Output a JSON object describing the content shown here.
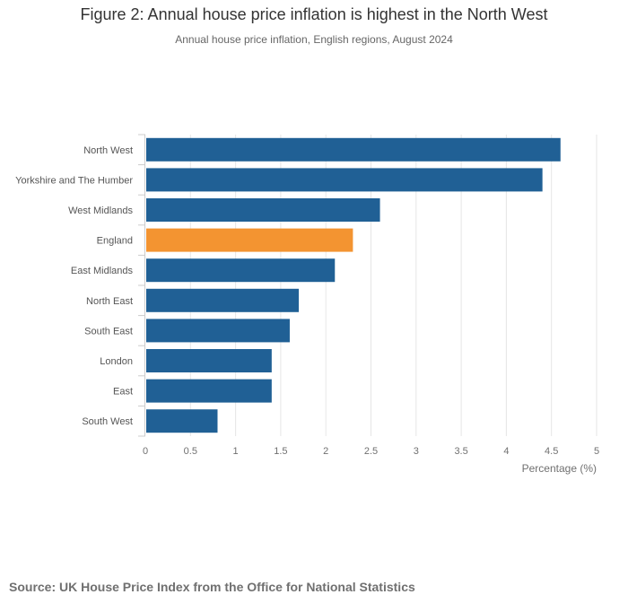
{
  "chart_data": {
    "type": "bar",
    "orientation": "horizontal",
    "title": "Figure 2: Annual house price inflation is highest in the North West",
    "subtitle": "Annual house price inflation, English regions, August 2024",
    "xlabel": "Percentage (%)",
    "ylabel": "",
    "xlim": [
      0,
      5
    ],
    "xticks": [
      "0",
      "0.5",
      "1",
      "1.5",
      "2",
      "2.5",
      "3",
      "3.5",
      "4",
      "4.5",
      "5"
    ],
    "grid": "vertical",
    "categories": [
      "North West",
      "Yorkshire and The Humber",
      "West Midlands",
      "England",
      "East Midlands",
      "North East",
      "South East",
      "London",
      "East",
      "South West"
    ],
    "values": [
      4.6,
      4.4,
      2.6,
      2.3,
      2.1,
      1.7,
      1.6,
      1.4,
      1.4,
      0.8
    ],
    "highlight": "England",
    "colors": {
      "default": "#206095",
      "highlight": "#F39431",
      "grid": "#e6e6e6",
      "axis": "#cccccc",
      "tick_label": "#707070"
    }
  },
  "source": "Source: UK House Price Index from the Office for National Statistics"
}
